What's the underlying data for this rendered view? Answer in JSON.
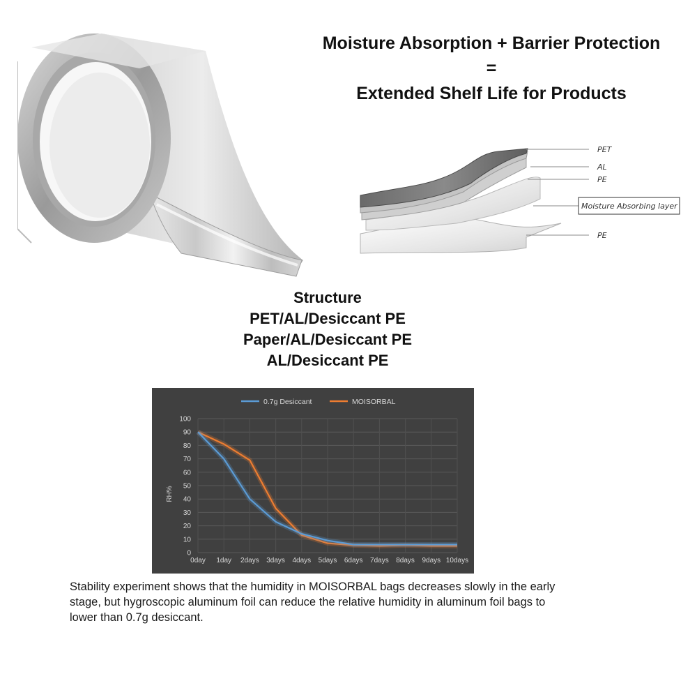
{
  "headline": {
    "line1": "Moisture Absorption + Barrier Protection",
    "line2": "=",
    "line3": "Extended Shelf Life for Products"
  },
  "product_image": {
    "icon": "aluminum-foil-tape-roll"
  },
  "layer_diagram": {
    "labels": [
      "PET",
      "AL",
      "PE",
      "Moisture Absorbing layer",
      "PE"
    ]
  },
  "structure": {
    "title": "Structure",
    "items": [
      "PET/AL/Desiccant PE",
      "Paper/AL/Desiccant PE",
      "AL/Desiccant PE"
    ]
  },
  "chart_data": {
    "type": "line",
    "categories": [
      "0day",
      "1day",
      "2days",
      "3days",
      "4days",
      "5days",
      "6days",
      "7days",
      "8days",
      "9days",
      "10days"
    ],
    "series": [
      {
        "name": "0.7g Desiccant",
        "color": "#5b9bd5",
        "values": [
          90,
          70,
          40,
          23,
          14,
          9,
          6,
          6,
          6,
          6,
          6
        ]
      },
      {
        "name": "MOISORBAL",
        "color": "#ed7d31",
        "values": [
          90,
          81,
          69,
          33,
          13,
          7,
          5.5,
          5,
          5.5,
          5,
          5
        ]
      }
    ],
    "ylabel": "RH%",
    "xlabel": "",
    "ylim": [
      0,
      100
    ],
    "yticks": [
      0,
      10,
      20,
      30,
      40,
      50,
      60,
      70,
      80,
      90,
      100
    ],
    "grid": true,
    "legend_position": "top",
    "background": "#404040"
  },
  "caption": "Stability experiment shows that the humidity in MOISORBAL bags decreases slowly in the early stage, but hygroscopic aluminum foil can reduce the relative humidity in aluminum foil bags to lower than 0.7g desiccant."
}
